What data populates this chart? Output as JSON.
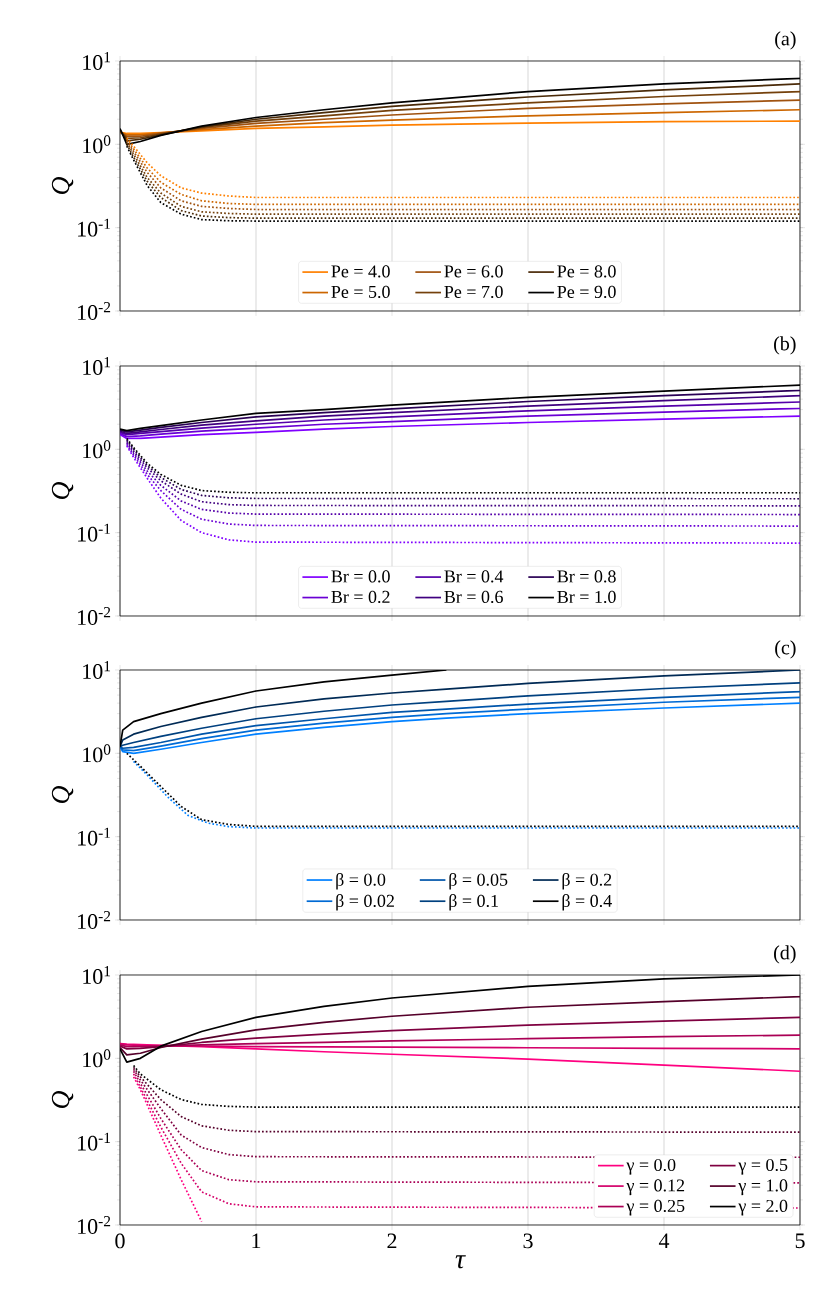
{
  "chart_data": [
    {
      "type": "line",
      "title": "(a)",
      "ylabel": "Q",
      "xlim": [
        0,
        5
      ],
      "xticks": [
        0,
        1,
        2,
        3,
        4,
        5
      ],
      "ylim": [
        0.01,
        10
      ],
      "log": true,
      "grid": "x",
      "legend": "bottom",
      "tick_labels": "y",
      "yticks": [
        {
          "value": 0.01,
          "label": "10$^{-2}$"
        },
        {
          "value": 0.1,
          "label": "10$^{-1}$"
        },
        {
          "value": 1,
          "label": "10$^{0}$"
        },
        {
          "value": 10,
          "label": "10$^{1}$"
        }
      ],
      "series": [
        {
          "name": "Pe = 4.0",
          "color": "#ff8000",
          "line_style": "solid",
          "x": [
            0,
            0.05,
            0.15,
            0.3,
            0.6,
            1,
            1.5,
            2,
            3,
            4,
            5
          ],
          "values": [
            1.4,
            1.35,
            1.35,
            1.38,
            1.45,
            1.55,
            1.62,
            1.7,
            1.8,
            1.87,
            1.9
          ]
        },
        {
          "name": "Pe = 5.0",
          "color": "#cc6600",
          "line_style": "solid",
          "x": [
            0,
            0.05,
            0.15,
            0.3,
            0.6,
            1,
            1.5,
            2,
            3,
            4,
            5
          ],
          "values": [
            1.4,
            1.3,
            1.3,
            1.37,
            1.5,
            1.65,
            1.82,
            1.95,
            2.2,
            2.4,
            2.6
          ]
        },
        {
          "name": "Pe = 6.0",
          "color": "#a0520f",
          "line_style": "solid",
          "x": [
            0,
            0.05,
            0.15,
            0.3,
            0.6,
            1,
            1.5,
            2,
            3,
            4,
            5
          ],
          "values": [
            1.4,
            1.25,
            1.25,
            1.35,
            1.55,
            1.78,
            2.0,
            2.25,
            2.7,
            3.05,
            3.4
          ]
        },
        {
          "name": "Pe = 7.0",
          "color": "#74400b",
          "line_style": "solid",
          "x": [
            0,
            0.05,
            0.15,
            0.3,
            0.6,
            1,
            1.5,
            2,
            3,
            4,
            5
          ],
          "values": [
            1.45,
            1.18,
            1.2,
            1.33,
            1.6,
            1.9,
            2.2,
            2.55,
            3.15,
            3.75,
            4.3
          ]
        },
        {
          "name": "Pe = 8.0",
          "color": "#4a2a08",
          "line_style": "solid",
          "x": [
            0,
            0.05,
            0.15,
            0.3,
            0.6,
            1,
            1.5,
            2,
            3,
            4,
            5
          ],
          "values": [
            1.5,
            1.1,
            1.15,
            1.3,
            1.62,
            2.0,
            2.4,
            2.85,
            3.7,
            4.5,
            5.3
          ]
        },
        {
          "name": "Pe = 9.0",
          "color": "#000000",
          "line_style": "solid",
          "x": [
            0,
            0.05,
            0.15,
            0.3,
            0.6,
            1,
            1.5,
            2,
            3,
            4,
            5
          ],
          "values": [
            1.55,
            1.0,
            1.08,
            1.28,
            1.65,
            2.1,
            2.6,
            3.15,
            4.3,
            5.3,
            6.2
          ]
        },
        {
          "color": "#ff8000",
          "line_style": "dotted",
          "x": [
            0.05,
            0.1,
            0.2,
            0.3,
            0.45,
            0.6,
            0.8,
            1,
            5
          ],
          "values": [
            1.2,
            0.95,
            0.6,
            0.42,
            0.3,
            0.26,
            0.24,
            0.23,
            0.23
          ]
        },
        {
          "color": "#cc6600",
          "line_style": "dotted",
          "x": [
            0.05,
            0.1,
            0.2,
            0.3,
            0.45,
            0.6,
            0.8,
            1,
            5
          ],
          "values": [
            1.15,
            0.88,
            0.52,
            0.35,
            0.25,
            0.21,
            0.195,
            0.19,
            0.19
          ]
        },
        {
          "color": "#a0520f",
          "line_style": "dotted",
          "x": [
            0.05,
            0.1,
            0.2,
            0.3,
            0.45,
            0.6,
            0.8,
            1,
            5
          ],
          "values": [
            1.1,
            0.82,
            0.46,
            0.3,
            0.21,
            0.18,
            0.17,
            0.165,
            0.165
          ]
        },
        {
          "color": "#74400b",
          "line_style": "dotted",
          "x": [
            0.05,
            0.1,
            0.2,
            0.3,
            0.45,
            0.6,
            0.8,
            1,
            5
          ],
          "values": [
            1.05,
            0.76,
            0.4,
            0.26,
            0.18,
            0.155,
            0.148,
            0.145,
            0.145
          ]
        },
        {
          "color": "#4a2a08",
          "line_style": "dotted",
          "x": [
            0.05,
            0.1,
            0.2,
            0.3,
            0.45,
            0.6,
            0.8,
            1,
            5
          ],
          "values": [
            1.0,
            0.7,
            0.36,
            0.23,
            0.16,
            0.138,
            0.132,
            0.13,
            0.13
          ]
        },
        {
          "color": "#000000",
          "line_style": "dotted",
          "x": [
            0.05,
            0.1,
            0.2,
            0.3,
            0.45,
            0.6,
            0.8,
            1,
            5
          ],
          "values": [
            0.95,
            0.65,
            0.32,
            0.2,
            0.145,
            0.125,
            0.121,
            0.12,
            0.12
          ]
        }
      ]
    },
    {
      "type": "line",
      "title": "(b)",
      "ylabel": "Q",
      "xlim": [
        0,
        5
      ],
      "xticks": [
        0,
        1,
        2,
        3,
        4,
        5
      ],
      "ylim": [
        0.01,
        10
      ],
      "log": true,
      "grid": "x",
      "legend": "bottom",
      "tick_labels": "y",
      "yticks": [
        {
          "value": 0.01,
          "label": "10$^{-2}$"
        },
        {
          "value": 0.1,
          "label": "10$^{-1}$"
        },
        {
          "value": 1,
          "label": "10$^{0}$"
        },
        {
          "value": 10,
          "label": "10$^{1}$"
        }
      ],
      "series": [
        {
          "name": "Br = 0.0",
          "color": "#8000ff",
          "line_style": "solid",
          "x": [
            0,
            0.05,
            0.15,
            0.3,
            0.6,
            1,
            1.5,
            2,
            3,
            4,
            5
          ],
          "values": [
            1.5,
            1.35,
            1.35,
            1.4,
            1.5,
            1.6,
            1.75,
            1.88,
            2.1,
            2.3,
            2.5
          ]
        },
        {
          "name": "Br = 0.2",
          "color": "#6a00d4",
          "line_style": "solid",
          "x": [
            0,
            0.05,
            0.15,
            0.3,
            0.6,
            1,
            1.5,
            2,
            3,
            4,
            5
          ],
          "values": [
            1.55,
            1.42,
            1.45,
            1.52,
            1.65,
            1.8,
            2.0,
            2.15,
            2.5,
            2.8,
            3.1
          ]
        },
        {
          "name": "Br = 0.4",
          "color": "#5500aa",
          "line_style": "solid",
          "x": [
            0,
            0.05,
            0.15,
            0.3,
            0.6,
            1,
            1.5,
            2,
            3,
            4,
            5
          ],
          "values": [
            1.6,
            1.5,
            1.55,
            1.63,
            1.8,
            2.0,
            2.25,
            2.45,
            2.9,
            3.3,
            3.7
          ]
        },
        {
          "name": "Br = 0.6",
          "color": "#40007f",
          "line_style": "solid",
          "x": [
            0,
            0.05,
            0.15,
            0.3,
            0.6,
            1,
            1.5,
            2,
            3,
            4,
            5
          ],
          "values": [
            1.65,
            1.55,
            1.62,
            1.73,
            1.95,
            2.2,
            2.5,
            2.75,
            3.3,
            3.85,
            4.4
          ]
        },
        {
          "name": "Br = 0.8",
          "color": "#2a0055",
          "line_style": "solid",
          "x": [
            0,
            0.05,
            0.15,
            0.3,
            0.6,
            1,
            1.5,
            2,
            3,
            4,
            5
          ],
          "values": [
            1.7,
            1.62,
            1.7,
            1.83,
            2.1,
            2.45,
            2.75,
            3.05,
            3.75,
            4.4,
            5.1
          ]
        },
        {
          "name": "Br = 1.0",
          "color": "#000000",
          "line_style": "solid",
          "x": [
            0,
            0.05,
            0.15,
            0.3,
            0.6,
            1,
            1.5,
            2,
            3,
            4,
            5
          ],
          "values": [
            1.75,
            1.68,
            1.78,
            1.93,
            2.25,
            2.7,
            3.0,
            3.4,
            4.2,
            5.0,
            5.9
          ]
        },
        {
          "color": "#8000ff",
          "line_style": "dotted",
          "x": [
            0.05,
            0.1,
            0.2,
            0.3,
            0.45,
            0.6,
            0.8,
            1,
            5
          ],
          "values": [
            1.1,
            0.8,
            0.45,
            0.26,
            0.14,
            0.1,
            0.082,
            0.077,
            0.075
          ]
        },
        {
          "color": "#6a00d4",
          "line_style": "dotted",
          "x": [
            0.05,
            0.1,
            0.2,
            0.3,
            0.45,
            0.6,
            0.8,
            1,
            5
          ],
          "values": [
            1.15,
            0.85,
            0.5,
            0.32,
            0.19,
            0.145,
            0.127,
            0.122,
            0.12
          ]
        },
        {
          "color": "#5500aa",
          "line_style": "dotted",
          "x": [
            0.05,
            0.1,
            0.2,
            0.3,
            0.45,
            0.6,
            0.8,
            1,
            5
          ],
          "values": [
            1.2,
            0.9,
            0.55,
            0.37,
            0.24,
            0.19,
            0.172,
            0.167,
            0.165
          ]
        },
        {
          "color": "#40007f",
          "line_style": "dotted",
          "x": [
            0.05,
            0.1,
            0.2,
            0.3,
            0.45,
            0.6,
            0.8,
            1,
            5
          ],
          "values": [
            1.25,
            0.95,
            0.6,
            0.42,
            0.29,
            0.235,
            0.217,
            0.212,
            0.21
          ]
        },
        {
          "color": "#2a0055",
          "line_style": "dotted",
          "x": [
            0.05,
            0.1,
            0.2,
            0.3,
            0.45,
            0.6,
            0.8,
            1,
            5
          ],
          "values": [
            1.3,
            1.0,
            0.64,
            0.46,
            0.33,
            0.28,
            0.262,
            0.257,
            0.255
          ]
        },
        {
          "color": "#000000",
          "line_style": "dotted",
          "x": [
            0.05,
            0.1,
            0.2,
            0.3,
            0.45,
            0.6,
            0.8,
            1,
            5
          ],
          "values": [
            1.35,
            1.05,
            0.68,
            0.5,
            0.37,
            0.32,
            0.305,
            0.3,
            0.3
          ]
        }
      ]
    },
    {
      "type": "line",
      "title": "(c)",
      "ylabel": "Q",
      "xlim": [
        0,
        5
      ],
      "xticks": [
        0,
        1,
        2,
        3,
        4,
        5
      ],
      "ylim": [
        0.01,
        10
      ],
      "log": true,
      "grid": "x",
      "legend": "bottom",
      "tick_labels": "y",
      "yticks": [
        {
          "value": 0.01,
          "label": "10$^{-2}$"
        },
        {
          "value": 0.1,
          "label": "10$^{-1}$"
        },
        {
          "value": 1,
          "label": "10$^{0}$"
        },
        {
          "value": 10,
          "label": "10$^{1}$"
        }
      ],
      "series": [
        {
          "name": "β = 0.0",
          "color": "#0080ff",
          "line_style": "solid",
          "x": [
            0,
            0.02,
            0.1,
            0.3,
            0.6,
            1,
            1.5,
            2,
            2.4,
            3,
            4,
            5
          ],
          "values": [
            1.2,
            1.05,
            1.0,
            1.12,
            1.35,
            1.7,
            2.05,
            2.4,
            2.65,
            3.0,
            3.5,
            4.0
          ]
        },
        {
          "name": "β = 0.02",
          "color": "#006ad4",
          "line_style": "solid",
          "x": [
            0,
            0.02,
            0.1,
            0.3,
            0.6,
            1,
            1.5,
            2,
            2.4,
            3,
            4,
            5
          ],
          "values": [
            1.2,
            1.1,
            1.08,
            1.22,
            1.5,
            1.9,
            2.3,
            2.7,
            3.0,
            3.4,
            4.1,
            4.7
          ]
        },
        {
          "name": "β = 0.05",
          "color": "#0055aa",
          "line_style": "solid",
          "x": [
            0,
            0.02,
            0.1,
            0.3,
            0.6,
            1,
            1.5,
            2,
            2.4,
            3,
            4,
            5
          ],
          "values": [
            1.2,
            1.15,
            1.18,
            1.35,
            1.7,
            2.15,
            2.6,
            3.1,
            3.4,
            3.9,
            4.7,
            5.5
          ]
        },
        {
          "name": "β = 0.1",
          "color": "#00407f",
          "line_style": "solid",
          "x": [
            0,
            0.02,
            0.1,
            0.3,
            0.6,
            1,
            1.5,
            2,
            2.4,
            3,
            4,
            5
          ],
          "values": [
            1.2,
            1.25,
            1.35,
            1.6,
            2.0,
            2.6,
            3.2,
            3.8,
            4.2,
            4.9,
            6.0,
            7.0
          ]
        },
        {
          "name": "β = 0.2",
          "color": "#002a55",
          "line_style": "solid",
          "x": [
            0,
            0.02,
            0.1,
            0.3,
            0.6,
            1,
            1.5,
            2,
            2.4,
            3,
            4,
            5
          ],
          "values": [
            1.2,
            1.45,
            1.7,
            2.1,
            2.7,
            3.6,
            4.5,
            5.3,
            5.9,
            6.9,
            8.5,
            10
          ]
        },
        {
          "name": "β = 0.4",
          "color": "#000000",
          "line_style": "solid",
          "x": [
            0,
            0.02,
            0.1,
            0.3,
            0.6,
            1,
            1.5,
            2,
            2.4
          ],
          "values": [
            1.2,
            1.9,
            2.4,
            3.0,
            4.0,
            5.6,
            7.2,
            8.7,
            10
          ]
        },
        {
          "color": "#0080ff",
          "line_style": "dotted",
          "x": [
            0.1,
            0.2,
            0.35,
            0.5,
            0.65,
            0.8,
            1,
            5
          ],
          "values": [
            0.8,
            0.55,
            0.3,
            0.18,
            0.145,
            0.132,
            0.127,
            0.127
          ]
        },
        {
          "color": "#000000",
          "line_style": "dotted",
          "x": [
            0.05,
            0.15,
            0.3,
            0.45,
            0.6,
            0.8,
            1,
            5
          ],
          "values": [
            1.0,
            0.7,
            0.4,
            0.23,
            0.16,
            0.14,
            0.133,
            0.133
          ]
        }
      ]
    },
    {
      "type": "line",
      "title": "(d)",
      "xlabel": "τ",
      "ylabel": "Q",
      "xlim": [
        0,
        5
      ],
      "xticks": [
        0,
        1,
        2,
        3,
        4,
        5
      ],
      "ylim": [
        0.01,
        10
      ],
      "log": true,
      "grid": "x",
      "legend": "bottom right",
      "yticks": [
        {
          "value": 0.01,
          "label": "10$^{-2}$"
        },
        {
          "value": 0.1,
          "label": "10$^{-1}$"
        },
        {
          "value": 1,
          "label": "10$^{0}$"
        },
        {
          "value": 10,
          "label": "10$^{1}$"
        }
      ],
      "series": [
        {
          "name": "γ = 0.0",
          "color": "#ff0080",
          "line_style": "solid",
          "x": [
            0,
            0.05,
            0.15,
            0.3,
            0.6,
            1,
            1.5,
            2,
            3,
            4,
            5
          ],
          "values": [
            1.5,
            1.48,
            1.46,
            1.43,
            1.38,
            1.3,
            1.2,
            1.12,
            0.98,
            0.83,
            0.7
          ]
        },
        {
          "name": "γ = 0.12",
          "color": "#d4006a",
          "line_style": "solid",
          "x": [
            0,
            0.05,
            0.15,
            0.3,
            0.6,
            1,
            1.5,
            2,
            3,
            4,
            5
          ],
          "values": [
            1.5,
            1.45,
            1.43,
            1.42,
            1.4,
            1.38,
            1.37,
            1.36,
            1.34,
            1.32,
            1.3
          ]
        },
        {
          "name": "γ = 0.25",
          "color": "#aa0055",
          "line_style": "solid",
          "x": [
            0,
            0.05,
            0.15,
            0.3,
            0.6,
            1,
            1.5,
            2,
            3,
            4,
            5
          ],
          "values": [
            1.45,
            1.38,
            1.38,
            1.4,
            1.45,
            1.5,
            1.55,
            1.62,
            1.72,
            1.82,
            1.9
          ]
        },
        {
          "name": "γ = 0.5",
          "color": "#7f0040",
          "line_style": "solid",
          "x": [
            0,
            0.05,
            0.15,
            0.3,
            0.6,
            1,
            1.5,
            2,
            3,
            4,
            5
          ],
          "values": [
            1.4,
            1.3,
            1.32,
            1.38,
            1.55,
            1.75,
            1.95,
            2.15,
            2.5,
            2.8,
            3.1
          ]
        },
        {
          "name": "γ = 1.0",
          "color": "#55002a",
          "line_style": "solid",
          "x": [
            0,
            0.05,
            0.15,
            0.3,
            0.6,
            1,
            1.5,
            2,
            3,
            4,
            5
          ],
          "values": [
            1.35,
            1.1,
            1.15,
            1.35,
            1.7,
            2.2,
            2.7,
            3.2,
            4.1,
            4.8,
            5.5
          ]
        },
        {
          "name": "γ = 2.0",
          "color": "#000000",
          "line_style": "solid",
          "x": [
            0,
            0.05,
            0.15,
            0.3,
            0.6,
            1,
            1.5,
            2,
            3,
            4,
            5
          ],
          "values": [
            1.3,
            0.9,
            1.0,
            1.4,
            2.1,
            3.1,
            4.2,
            5.3,
            7.3,
            9.0,
            10
          ]
        },
        {
          "color": "#ff0080",
          "line_style": "dotted",
          "x": [
            0.1,
            0.15,
            0.3,
            0.45,
            0.6
          ],
          "values": [
            0.6,
            0.42,
            0.12,
            0.035,
            0.011
          ]
        },
        {
          "color": "#d4006a",
          "line_style": "dotted",
          "x": [
            0.1,
            0.15,
            0.3,
            0.45,
            0.6,
            0.8,
            1,
            5
          ],
          "values": [
            0.65,
            0.45,
            0.15,
            0.055,
            0.025,
            0.018,
            0.0165,
            0.016
          ]
        },
        {
          "color": "#aa0055",
          "line_style": "dotted",
          "x": [
            0.1,
            0.15,
            0.3,
            0.45,
            0.6,
            0.8,
            1,
            5
          ],
          "values": [
            0.7,
            0.5,
            0.19,
            0.08,
            0.045,
            0.035,
            0.033,
            0.032
          ]
        },
        {
          "color": "#7f0040",
          "line_style": "dotted",
          "x": [
            0.1,
            0.15,
            0.3,
            0.45,
            0.6,
            0.8,
            1,
            5
          ],
          "values": [
            0.74,
            0.55,
            0.25,
            0.12,
            0.085,
            0.07,
            0.066,
            0.065
          ]
        },
        {
          "color": "#55002a",
          "line_style": "dotted",
          "x": [
            0.1,
            0.15,
            0.3,
            0.45,
            0.6,
            0.8,
            1,
            5
          ],
          "values": [
            0.78,
            0.6,
            0.32,
            0.2,
            0.155,
            0.137,
            0.132,
            0.13
          ]
        },
        {
          "color": "#000000",
          "line_style": "dotted",
          "x": [
            0.1,
            0.15,
            0.3,
            0.45,
            0.6,
            0.8,
            1,
            5
          ],
          "values": [
            0.82,
            0.65,
            0.42,
            0.32,
            0.28,
            0.265,
            0.26,
            0.26
          ]
        }
      ]
    }
  ]
}
